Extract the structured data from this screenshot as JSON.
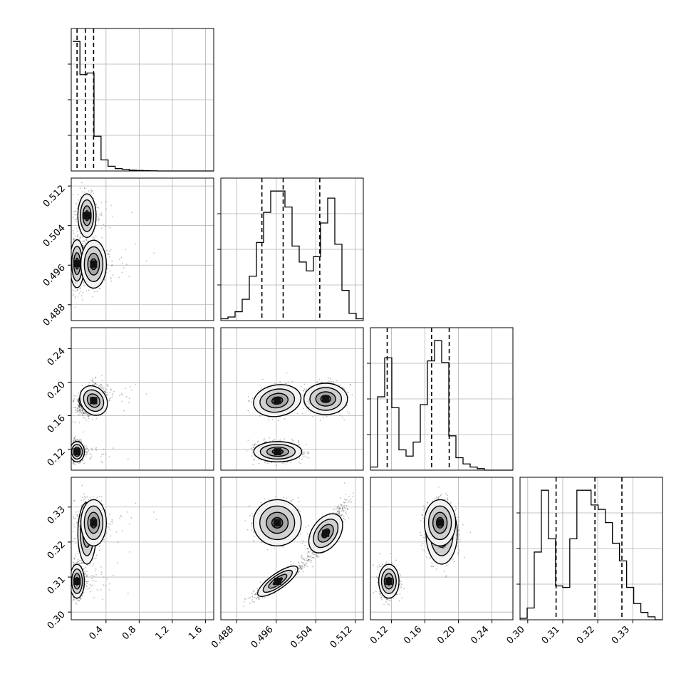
{
  "chart_data": {
    "type": "corner",
    "title": "",
    "grid": true,
    "params": [
      {
        "range": [
          -0.02,
          1.7
        ],
        "ticks": [
          0.4,
          0.8,
          1.2,
          1.6
        ],
        "tick_labels": [
          "0.4",
          "0.8",
          "1.2",
          "1.6"
        ]
      },
      {
        "range": [
          0.4848,
          0.5136
        ],
        "ticks": [
          0.488,
          0.496,
          0.504,
          0.512
        ],
        "tick_labels": [
          "0.488",
          "0.496",
          "0.504",
          "0.512"
        ]
      },
      {
        "range": [
          0.095,
          0.265
        ],
        "ticks": [
          0.12,
          0.16,
          0.2,
          0.24
        ],
        "tick_labels": [
          "0.12",
          "0.16",
          "0.20",
          "0.24"
        ]
      },
      {
        "range": [
          0.2978,
          0.3385
        ],
        "ticks": [
          0.3,
          0.31,
          0.32,
          0.33
        ],
        "tick_labels": [
          "0.30",
          "0.31",
          "0.32",
          "0.33"
        ]
      }
    ],
    "histograms": [
      {
        "param": 0,
        "bin_start": 0.0,
        "bin_width": 0.085,
        "counts": [
          0.82,
          0.61,
          0.62,
          0.22,
          0.07,
          0.03,
          0.015,
          0.01,
          0.005,
          0.003,
          0.002,
          0.001,
          0.0,
          0.0,
          0.0,
          0.0,
          0.0,
          0.0,
          0.0,
          0.0
        ],
        "quantiles": [
          0.05,
          0.15,
          0.25
        ]
      },
      {
        "param": 1,
        "bin_start": 0.4848,
        "bin_width": 0.00144,
        "counts": [
          0.01,
          0.02,
          0.05,
          0.12,
          0.25,
          0.44,
          0.61,
          0.73,
          0.73,
          0.64,
          0.42,
          0.33,
          0.28,
          0.36,
          0.55,
          0.69,
          0.43,
          0.17,
          0.04,
          0.01
        ],
        "quantiles": [
          0.4931,
          0.4974,
          0.5048
        ]
      },
      {
        "param": 2,
        "bin_start": 0.095,
        "bin_width": 0.0085,
        "counts": [
          0.02,
          0.47,
          0.72,
          0.4,
          0.13,
          0.09,
          0.18,
          0.42,
          0.7,
          0.83,
          0.69,
          0.22,
          0.08,
          0.04,
          0.02,
          0.01,
          0.0,
          0.0,
          0.0,
          0.0
        ],
        "quantiles": [
          0.115,
          0.168,
          0.189
        ]
      },
      {
        "param": 3,
        "bin_start": 0.2978,
        "bin_width": 0.00203,
        "counts": [
          0.01,
          0.08,
          0.46,
          0.88,
          0.55,
          0.23,
          0.22,
          0.55,
          0.88,
          0.88,
          0.78,
          0.75,
          0.66,
          0.52,
          0.4,
          0.22,
          0.11,
          0.05,
          0.02,
          0.0
        ],
        "quantiles": [
          0.3081,
          0.3192,
          0.3269
        ]
      }
    ],
    "clusters": [
      {
        "means": [
          0.05,
          0.4963,
          0.117,
          0.3088
        ],
        "sd": [
          0.04,
          0.0022,
          0.0055,
          0.0022
        ],
        "corr": {
          "1_2": 0,
          "1_3": 0.9,
          "2_3": 0
        },
        "density": 1.0
      },
      {
        "means": [
          0.17,
          0.506,
          0.18,
          0.3225
        ],
        "sd": [
          0.05,
          0.002,
          0.0085,
          0.004
        ],
        "corr": {
          "1_2": 0,
          "1_3": 0.9,
          "2_3": 0,
          "0_2": 0.6
        },
        "density": 0.7
      },
      {
        "means": [
          0.25,
          0.4962,
          0.178,
          0.3255
        ],
        "sd": [
          0.07,
          0.0022,
          0.0085,
          0.003
        ],
        "corr": {
          "1_2": 0.1,
          "0_2": 0.5
        },
        "density": 0.6
      }
    ]
  }
}
